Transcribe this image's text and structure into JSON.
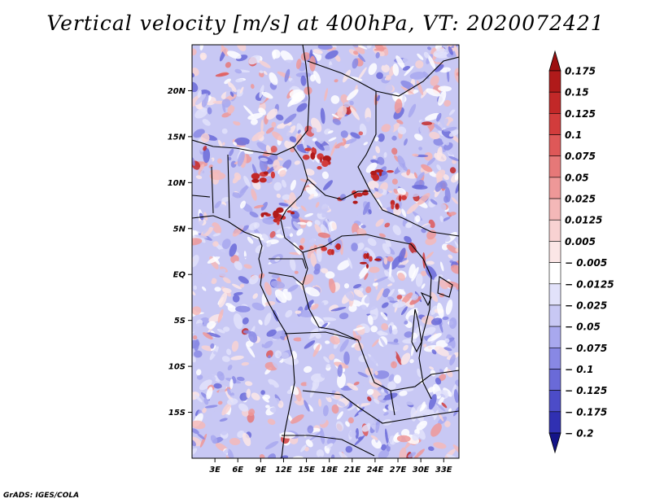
{
  "title": "Vertical velocity [m/s] at 400hPa, VT: 2020072421",
  "footer": "GrADS: IGES/COLA",
  "map": {
    "lon_range": [
      0,
      35
    ],
    "lat_range": [
      -20,
      25
    ],
    "lat_ticks": [
      {
        "lat": 20,
        "label": "20N"
      },
      {
        "lat": 15,
        "label": "15N"
      },
      {
        "lat": 10,
        "label": "10N"
      },
      {
        "lat": 5,
        "label": "5N"
      },
      {
        "lat": 0,
        "label": "EQ"
      },
      {
        "lat": -5,
        "label": "5S"
      },
      {
        "lat": -10,
        "label": "10S"
      },
      {
        "lat": -15,
        "label": "15S"
      }
    ],
    "lon_ticks": [
      {
        "lon": 3,
        "label": "3E"
      },
      {
        "lon": 6,
        "label": "6E"
      },
      {
        "lon": 9,
        "label": "9E"
      },
      {
        "lon": 12,
        "label": "12E"
      },
      {
        "lon": 15,
        "label": "15E"
      },
      {
        "lon": 18,
        "label": "18E"
      },
      {
        "lon": 21,
        "label": "21E"
      },
      {
        "lon": 24,
        "label": "24E"
      },
      {
        "lon": 27,
        "label": "27E"
      },
      {
        "lon": 30,
        "label": "30E"
      },
      {
        "lon": 33,
        "label": "33E"
      }
    ]
  },
  "colorbar": {
    "levels": [
      {
        "label": "0.175",
        "color": "#b01a1a"
      },
      {
        "label": "0.15",
        "color": "#c22828"
      },
      {
        "label": "0.125",
        "color": "#d23c3c"
      },
      {
        "label": "0.1",
        "color": "#de5858"
      },
      {
        "label": "0.075",
        "color": "#e67878"
      },
      {
        "label": "0.05",
        "color": "#ee9898"
      },
      {
        "label": "0.025",
        "color": "#f4b8b8"
      },
      {
        "label": "0.0125",
        "color": "#f8d2d2"
      },
      {
        "label": "0.005",
        "color": "#fbe6e6"
      },
      {
        "label": "− 0.005",
        "color": "#ffffff"
      },
      {
        "label": "− 0.0125",
        "color": "#e2e2fa"
      },
      {
        "label": "− 0.025",
        "color": "#c8c8f4"
      },
      {
        "label": "− 0.05",
        "color": "#a8a8ee"
      },
      {
        "label": "− 0.075",
        "color": "#8888e4"
      },
      {
        "label": "− 0.1",
        "color": "#6a6ad8"
      },
      {
        "label": "− 0.125",
        "color": "#4c4cc8"
      },
      {
        "label": "− 0.175",
        "color": "#3030b2"
      },
      {
        "label": "− 0.2",
        "color": "#1c1c98"
      }
    ],
    "top_color": "#9c1010",
    "bottom_color": "#141488"
  }
}
